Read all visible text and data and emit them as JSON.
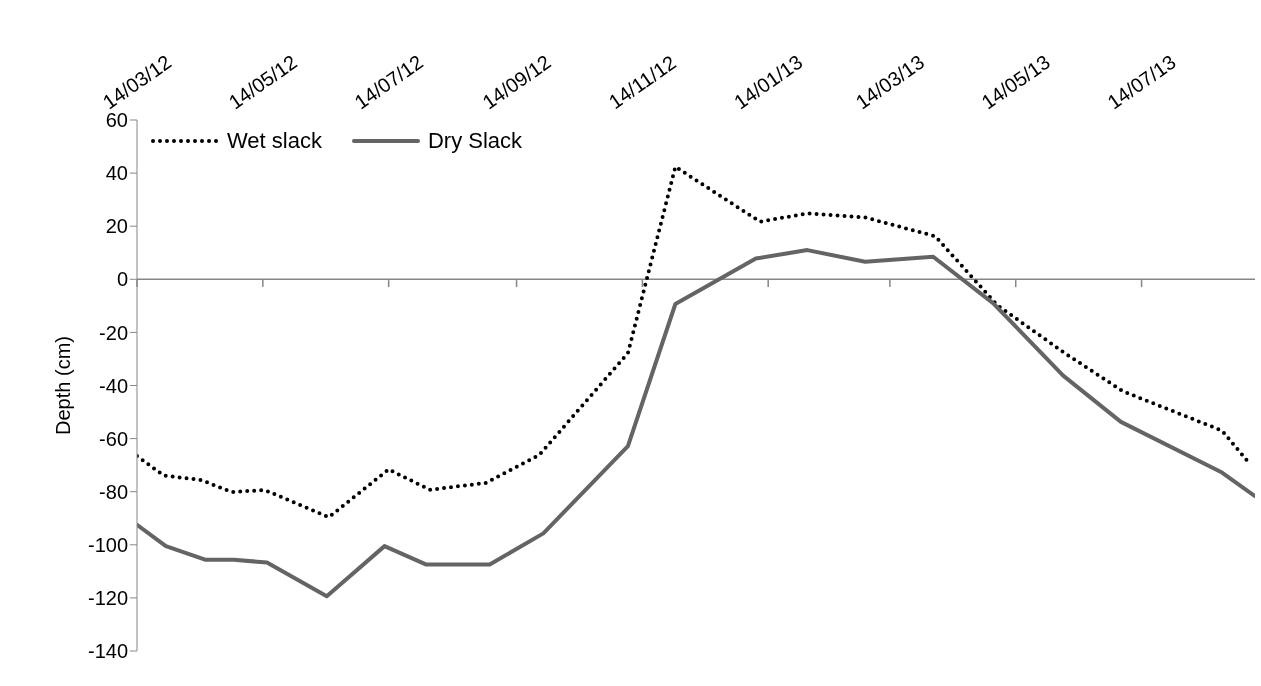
{
  "chart_data": {
    "type": "line",
    "ylabel": "Depth (cm)",
    "xlim": [
      "2012-03-14",
      "2013-09-07"
    ],
    "xticks": [
      {
        "value": "2012-03-14",
        "label": "14/03/12"
      },
      {
        "value": "2012-05-14",
        "label": "14/05/12"
      },
      {
        "value": "2012-07-14",
        "label": "14/07/12"
      },
      {
        "value": "2012-09-14",
        "label": "14/09/12"
      },
      {
        "value": "2012-11-14",
        "label": "14/11/12"
      },
      {
        "value": "2013-01-14",
        "label": "14/01/13"
      },
      {
        "value": "2013-03-14",
        "label": "14/03/13"
      },
      {
        "value": "2013-05-14",
        "label": "14/05/13"
      },
      {
        "value": "2013-07-14",
        "label": "14/07/13"
      }
    ],
    "ylim": [
      -140,
      60
    ],
    "yticks": [
      -140,
      -120,
      -100,
      -80,
      -60,
      -40,
      -20,
      0,
      20,
      40,
      60
    ],
    "legend": "top left",
    "marker": "none",
    "series": [
      {
        "name": "Wet slack",
        "color": "#000000",
        "line_style": "dotted",
        "x": [
          "2012-03-14",
          "2012-03-27",
          "2012-04-14",
          "2012-04-29",
          "2012-05-15",
          "2012-06-15",
          "2012-07-14",
          "2012-08-03",
          "2012-08-30",
          "2012-09-25",
          "2012-11-07",
          "2012-11-30",
          "2013-01-10",
          "2013-02-02",
          "2013-03-02",
          "2013-04-05",
          "2013-05-05",
          "2013-06-06",
          "2013-07-05",
          "2013-08-22",
          "2013-09-05"
        ],
        "values": [
          -66.6,
          -73.9,
          -75.6,
          -80.1,
          -79.4,
          -89.6,
          -71.6,
          -79.3,
          -76.7,
          -66.2,
          -27.8,
          42.4,
          21.7,
          24.8,
          23.3,
          16.2,
          -9.7,
          -27.4,
          -42.2,
          -57.0,
          -70.0
        ]
      },
      {
        "name": "Dry Slack",
        "color": "#646464",
        "line_style": "solid",
        "x": [
          "2012-03-14",
          "2012-03-28",
          "2012-04-16",
          "2012-04-30",
          "2012-05-16",
          "2012-06-14",
          "2012-07-12",
          "2012-08-01",
          "2012-09-01",
          "2012-09-27",
          "2012-11-07",
          "2012-11-30",
          "2013-01-08",
          "2013-02-02",
          "2013-03-02",
          "2013-04-04",
          "2013-05-03",
          "2013-06-06",
          "2013-07-04",
          "2013-08-22",
          "2013-09-07"
        ],
        "values": [
          -92.5,
          -100.5,
          -105.6,
          -105.6,
          -106.7,
          -119.4,
          -100.5,
          -107.4,
          -107.4,
          -95.7,
          -62.8,
          -9.3,
          7.8,
          11.0,
          6.6,
          8.5,
          -9.0,
          -36.3,
          -53.7,
          -72.8,
          -81.7
        ]
      }
    ]
  }
}
